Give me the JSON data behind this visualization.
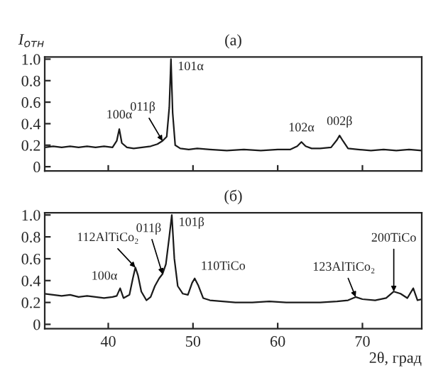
{
  "chart_data": [
    {
      "type": "line",
      "title": "(a)",
      "ylabel": "I$_{отн}$",
      "xlim": [
        32.5,
        77
      ],
      "xticks": [
        {
          "value": 40,
          "label": null
        },
        {
          "value": 50,
          "label": null
        },
        {
          "value": 60,
          "label": null
        },
        {
          "value": 70,
          "label": null
        }
      ],
      "ylim": [
        -0.04,
        1.02
      ],
      "yticks": [
        0,
        0.2,
        0.4,
        0.6,
        0.8,
        {
          "value": 1.0,
          "label": "1.0"
        }
      ],
      "tick_labels": "y",
      "grid": false,
      "series": [
        {
          "color": "#1a1a1a",
          "x": [
            32.5,
            33.5,
            34.5,
            35.5,
            36.5,
            37.5,
            38.5,
            39.5,
            40.5,
            41.0,
            41.3,
            41.6,
            42.2,
            43,
            44,
            45,
            45.8,
            46.4,
            46.9,
            47.2,
            47.4,
            47.6,
            47.9,
            48.5,
            49.5,
            50.5,
            52,
            54,
            56,
            58,
            60,
            61.5,
            62.3,
            62.8,
            63.3,
            64,
            65,
            66.3,
            67.0,
            67.3,
            67.7,
            68.3,
            69.5,
            71,
            72.5,
            74,
            75.5,
            77
          ],
          "values": [
            0.18,
            0.19,
            0.18,
            0.19,
            0.18,
            0.19,
            0.18,
            0.19,
            0.18,
            0.24,
            0.35,
            0.22,
            0.18,
            0.17,
            0.18,
            0.19,
            0.21,
            0.24,
            0.28,
            0.55,
            1.0,
            0.5,
            0.2,
            0.17,
            0.16,
            0.17,
            0.16,
            0.15,
            0.16,
            0.15,
            0.16,
            0.16,
            0.19,
            0.23,
            0.19,
            0.17,
            0.17,
            0.18,
            0.25,
            0.29,
            0.24,
            0.17,
            0.16,
            0.15,
            0.16,
            0.15,
            0.16,
            0.15
          ]
        }
      ],
      "annotations": [
        {
          "text": "100α",
          "x": 41.3,
          "y": 0.35
        },
        {
          "text": "011β",
          "x": 46.4,
          "y": 0.24
        },
        {
          "text": "101α",
          "x": 47.4,
          "y": 1.0
        },
        {
          "text": "102α",
          "x": 62.8,
          "y": 0.23
        },
        {
          "text": "002β",
          "x": 67.3,
          "y": 0.29
        }
      ]
    },
    {
      "type": "line",
      "title": "(б)",
      "xlabel": "2θ, град",
      "xlim": [
        32.5,
        77
      ],
      "xticks": [
        40,
        50,
        60,
        70
      ],
      "ylim": [
        -0.04,
        1.02
      ],
      "yticks": [
        0,
        0.2,
        0.4,
        0.6,
        0.8,
        {
          "value": 1.0,
          "label": "1.0"
        }
      ],
      "grid": false,
      "series": [
        {
          "color": "#1a1a1a",
          "x": [
            32.5,
            33.5,
            34.5,
            35.5,
            36.5,
            37.5,
            38.5,
            39.5,
            40.5,
            41.0,
            41.4,
            41.8,
            42.5,
            42.9,
            43.2,
            43.5,
            43.9,
            44.5,
            45.0,
            45.5,
            46.0,
            46.4,
            46.8,
            47.2,
            47.5,
            47.8,
            48.2,
            48.8,
            49.4,
            49.9,
            50.2,
            50.6,
            51.2,
            52,
            53.5,
            55,
            57,
            59,
            61,
            63,
            65,
            67,
            68.3,
            69.2,
            70,
            71.5,
            72.8,
            73.7,
            74.5,
            75.3,
            76,
            76.5,
            77
          ],
          "values": [
            0.28,
            0.27,
            0.26,
            0.27,
            0.25,
            0.26,
            0.25,
            0.24,
            0.25,
            0.26,
            0.33,
            0.24,
            0.27,
            0.42,
            0.52,
            0.45,
            0.3,
            0.22,
            0.25,
            0.35,
            0.42,
            0.46,
            0.55,
            0.8,
            1.0,
            0.6,
            0.35,
            0.28,
            0.27,
            0.38,
            0.42,
            0.36,
            0.24,
            0.22,
            0.21,
            0.2,
            0.2,
            0.21,
            0.2,
            0.2,
            0.2,
            0.21,
            0.22,
            0.25,
            0.23,
            0.22,
            0.24,
            0.3,
            0.28,
            0.24,
            0.33,
            0.22,
            0.23
          ]
        }
      ],
      "annotations": [
        {
          "text": "100α",
          "x": 41.4,
          "y": 0.33
        },
        {
          "text": "112AlTiCo₂",
          "x": 43.2,
          "y": 0.52
        },
        {
          "text": "011β",
          "x": 46.4,
          "y": 0.46
        },
        {
          "text": "101β",
          "x": 47.5,
          "y": 1.0
        },
        {
          "text": "110TiCo",
          "x": 50.3,
          "y": 0.42
        },
        {
          "text": "123AlTiCo₂",
          "x": 69.2,
          "y": 0.25
        },
        {
          "text": "200TiCo",
          "x": 73.7,
          "y": 0.3
        }
      ]
    }
  ]
}
